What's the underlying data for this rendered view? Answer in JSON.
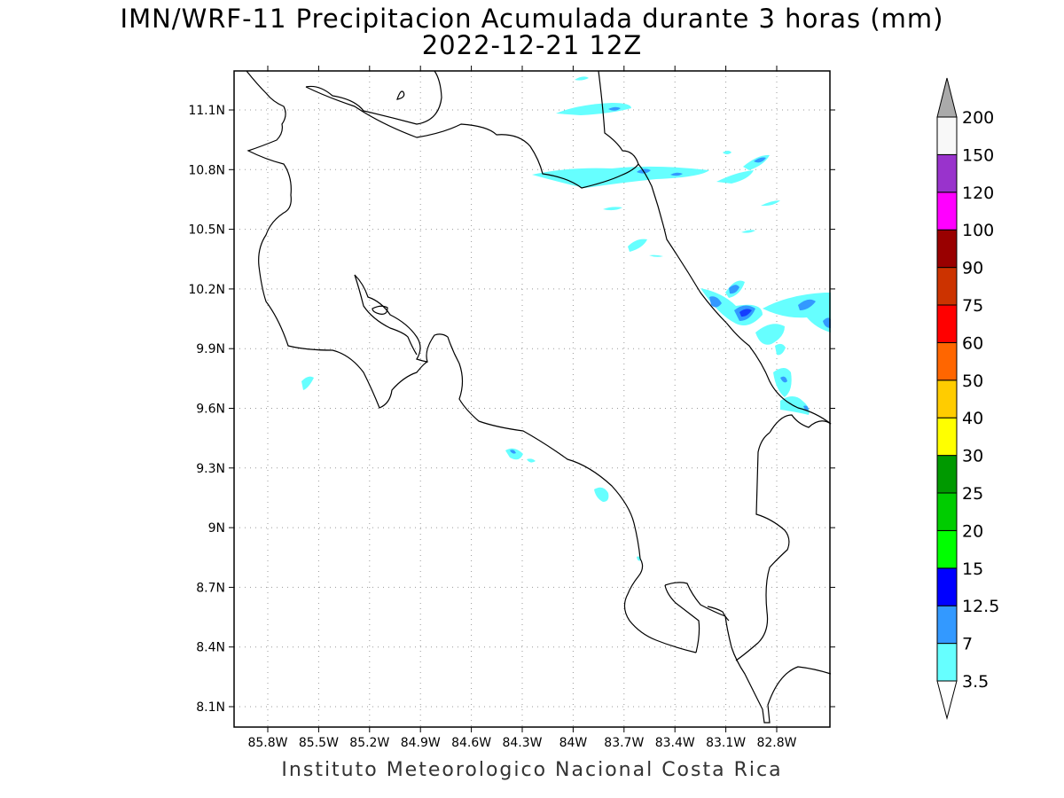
{
  "header": {
    "title": "IMN/WRF-11 Precipitacion Acumulada durante 3 horas (mm)",
    "subtitle": "2022-12-21 12Z"
  },
  "footer": {
    "credit": "Instituto Meteorologico Nacional Costa Rica"
  },
  "map": {
    "lat_ticks": [
      "11.1N",
      "10.8N",
      "10.5N",
      "10.2N",
      "9.9N",
      "9.6N",
      "9.3N",
      "9N",
      "8.7N",
      "8.4N",
      "8.1N"
    ],
    "lon_ticks": [
      "85.8W",
      "85.5W",
      "85.2W",
      "84.9W",
      "84.6W",
      "84.3W",
      "84W",
      "83.7W",
      "83.4W",
      "83.1W",
      "82.8W"
    ],
    "grid": "dotted",
    "coastline_color": "#000000"
  },
  "colorbar": {
    "levels": [
      "3.5",
      "7",
      "12.5",
      "15",
      "20",
      "25",
      "30",
      "40",
      "50",
      "60",
      "75",
      "90",
      "100",
      "120",
      "150",
      "200"
    ],
    "colors": [
      "#66ffff",
      "#3399ff",
      "#0000ff",
      "#00ff00",
      "#00cc00",
      "#009900",
      "#ffff00",
      "#ffcc00",
      "#ff6600",
      "#ff0000",
      "#cc3300",
      "#990000",
      "#ff00ff",
      "#9933cc",
      "#f8f8f8",
      "#aaaaaa"
    ],
    "over_color": "#aaaaaa",
    "under_color": "#ffffff"
  }
}
